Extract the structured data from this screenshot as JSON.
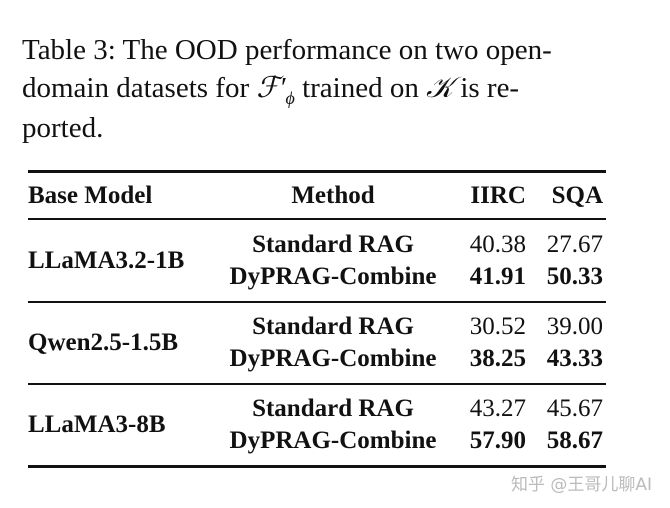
{
  "caption": {
    "line1": "Table 3: The OOD performance on two open-",
    "line2_before": "domain datasets for",
    "symbol": "ℱ′",
    "subscript": "ϕ",
    "line2_middle": "trained on",
    "symbol2": "𝒦",
    "line2_after": "is re-",
    "line3": "ported."
  },
  "table": {
    "header": [
      "Base Model",
      "Method",
      "IIRC",
      "SQA"
    ],
    "groups": [
      {
        "model": "LLaMA3.2-1B",
        "rows": [
          [
            "Standard RAG",
            "40.38",
            "27.67"
          ],
          [
            "DyPRAG-Combine",
            "41.91",
            "50.33"
          ]
        ]
      },
      {
        "model": "Qwen2.5-1.5B",
        "rows": [
          [
            "Standard RAG",
            "30.52",
            "39.00"
          ],
          [
            "DyPRAG-Combine",
            "38.25",
            "43.33"
          ]
        ]
      },
      {
        "model": "LLaMA3-8B",
        "rows": [
          [
            "Standard RAG",
            "43.27",
            "45.67"
          ],
          [
            "DyPRAG-Combine",
            "57.90",
            "58.67"
          ]
        ]
      }
    ]
  },
  "watermark": "知乎 @王哥儿聊AI"
}
